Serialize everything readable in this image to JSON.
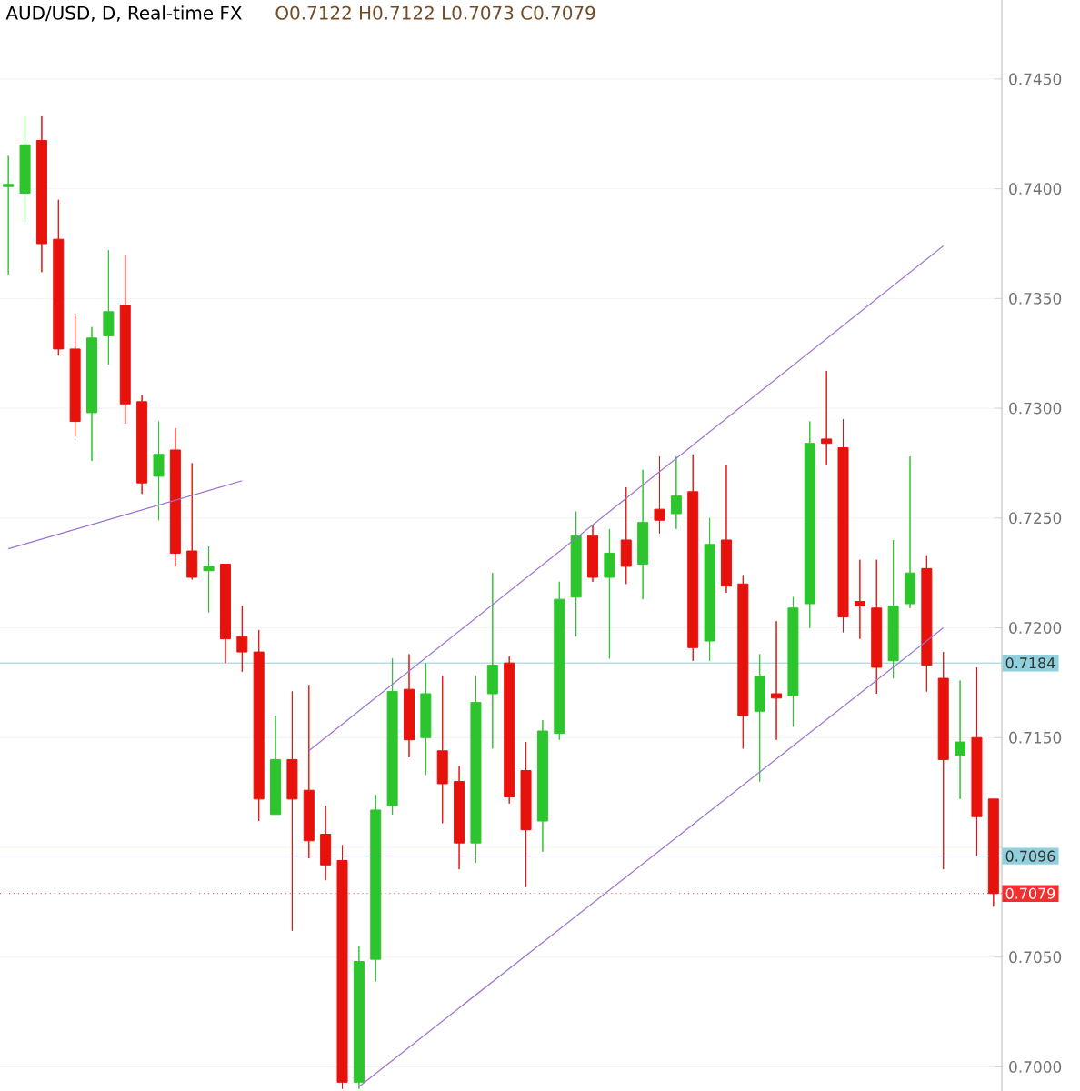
{
  "chart_data": {
    "type": "candlestick",
    "title": "AUD/USD, D, Real-time FX",
    "subtitle": "O0.7122  H0.7122  L0.7073  C0.7079",
    "categories": [
      null,
      null,
      null,
      null,
      null,
      null,
      null,
      null,
      null,
      null,
      null,
      null,
      null,
      null,
      null,
      null,
      null,
      null,
      null,
      null,
      null,
      null,
      null,
      null,
      null,
      null,
      null,
      null,
      null,
      null,
      null,
      null,
      null,
      null,
      null,
      null,
      null,
      null,
      null,
      null,
      null,
      null,
      null,
      null,
      null,
      null,
      null,
      null,
      null,
      null,
      null,
      null,
      null,
      null,
      null,
      null,
      null,
      null,
      null,
      null
    ],
    "ohlc": [
      [
        0.7401,
        0.7415,
        0.7361,
        0.7402
      ],
      [
        0.7398,
        0.7433,
        0.7385,
        0.742
      ],
      [
        0.7422,
        0.7433,
        0.7362,
        0.7375
      ],
      [
        0.7377,
        0.7395,
        0.7324,
        0.7327
      ],
      [
        0.7327,
        0.7343,
        0.7287,
        0.7294
      ],
      [
        0.7298,
        0.7337,
        0.7276,
        0.7332
      ],
      [
        0.7333,
        0.7372,
        0.732,
        0.7344
      ],
      [
        0.7347,
        0.737,
        0.7293,
        0.7302
      ],
      [
        0.7303,
        0.7306,
        0.7261,
        0.7266
      ],
      [
        0.7269,
        0.7294,
        0.7249,
        0.7279
      ],
      [
        0.7281,
        0.7291,
        0.7228,
        0.7234
      ],
      [
        0.7235,
        0.7275,
        0.7222,
        0.7223
      ],
      [
        0.7226,
        0.7237,
        0.7207,
        0.7228
      ],
      [
        0.7229,
        0.7229,
        0.7184,
        0.7195
      ],
      [
        0.7196,
        0.721,
        0.718,
        0.7189
      ],
      [
        0.7189,
        0.7199,
        0.7112,
        0.7122
      ],
      [
        0.7115,
        0.716,
        0.7115,
        0.714
      ],
      [
        0.714,
        0.7171,
        0.7062,
        0.7122
      ],
      [
        0.7126,
        0.7174,
        0.7095,
        0.7103
      ],
      [
        0.7106,
        0.7119,
        0.7085,
        0.7092
      ],
      [
        0.7094,
        0.7101,
        0.699,
        0.6993
      ],
      [
        0.6993,
        0.7055,
        0.699,
        0.7048
      ],
      [
        0.7049,
        0.7124,
        0.7039,
        0.7117
      ],
      [
        0.7119,
        0.7186,
        0.7115,
        0.7171
      ],
      [
        0.7172,
        0.7188,
        0.7141,
        0.7149
      ],
      [
        0.715,
        0.7184,
        0.7133,
        0.717
      ],
      [
        0.7144,
        0.7178,
        0.7111,
        0.7129
      ],
      [
        0.713,
        0.7137,
        0.709,
        0.7102
      ],
      [
        0.7102,
        0.7178,
        0.7093,
        0.7166
      ],
      [
        0.717,
        0.7225,
        0.7145,
        0.7183
      ],
      [
        0.7184,
        0.7187,
        0.712,
        0.7123
      ],
      [
        0.7135,
        0.7148,
        0.7082,
        0.7108
      ],
      [
        0.7112,
        0.7158,
        0.7098,
        0.7153
      ],
      [
        0.7152,
        0.7221,
        0.7149,
        0.7213
      ],
      [
        0.7214,
        0.7253,
        0.7196,
        0.7242
      ],
      [
        0.7242,
        0.7247,
        0.7221,
        0.7223
      ],
      [
        0.7223,
        0.7245,
        0.7186,
        0.7234
      ],
      [
        0.724,
        0.7264,
        0.722,
        0.7228
      ],
      [
        0.7229,
        0.7272,
        0.7213,
        0.7248
      ],
      [
        0.7254,
        0.7278,
        0.7243,
        0.7249
      ],
      [
        0.7252,
        0.7278,
        0.7245,
        0.726
      ],
      [
        0.7262,
        0.7279,
        0.7185,
        0.7191
      ],
      [
        0.7194,
        0.725,
        0.7185,
        0.7238
      ],
      [
        0.724,
        0.7274,
        0.7216,
        0.7219
      ],
      [
        0.722,
        0.7224,
        0.7145,
        0.716
      ],
      [
        0.7162,
        0.7188,
        0.713,
        0.7178
      ],
      [
        0.717,
        0.7203,
        0.7149,
        0.7168
      ],
      [
        0.7169,
        0.7214,
        0.7155,
        0.7209
      ],
      [
        0.7211,
        0.7294,
        0.72,
        0.7284
      ],
      [
        0.7286,
        0.7317,
        0.7274,
        0.7284
      ],
      [
        0.7282,
        0.7295,
        0.7198,
        0.7205
      ],
      [
        0.7212,
        0.7231,
        0.7195,
        0.721
      ],
      [
        0.7209,
        0.7231,
        0.717,
        0.7182
      ],
      [
        0.7185,
        0.724,
        0.7177,
        0.721
      ],
      [
        0.7211,
        0.7278,
        0.7209,
        0.7225
      ],
      [
        0.7227,
        0.7233,
        0.7171,
        0.7183
      ],
      [
        0.7177,
        0.7189,
        0.709,
        0.714
      ],
      [
        0.7142,
        0.7176,
        0.7122,
        0.7148
      ],
      [
        0.715,
        0.7182,
        0.7096,
        0.7114
      ],
      [
        0.7122,
        0.7122,
        0.7073,
        0.7079
      ]
    ],
    "colors": [
      "#2dc52d",
      "#2dc52d",
      "#e8120c",
      "#e8120c",
      "#e8120c",
      "#2dc52d",
      "#2dc52d",
      "#e8120c",
      "#e8120c",
      "#2dc52d",
      "#e8120c",
      "#e8120c",
      "#2dc52d",
      "#e8120c",
      "#e8120c",
      "#e8120c",
      "#2dc52d",
      "#e8120c",
      "#e8120c",
      "#e8120c",
      "#e8120c",
      "#2dc52d",
      "#2dc52d",
      "#2dc52d",
      "#e8120c",
      "#2dc52d",
      "#e8120c",
      "#e8120c",
      "#2dc52d",
      "#2dc52d",
      "#e8120c",
      "#e8120c",
      "#2dc52d",
      "#2dc52d",
      "#2dc52d",
      "#e8120c",
      "#2dc52d",
      "#e8120c",
      "#2dc52d",
      "#e8120c",
      "#2dc52d",
      "#e8120c",
      "#2dc52d",
      "#e8120c",
      "#e8120c",
      "#2dc52d",
      "#e8120c",
      "#2dc52d",
      "#2dc52d",
      "#e8120c",
      "#e8120c",
      "#e8120c",
      "#e8120c",
      "#2dc52d",
      "#2dc52d",
      "#e8120c",
      "#e8120c",
      "#2dc52d",
      "#e8120c",
      "#e8120c"
    ],
    "series": [
      {
        "type": "line",
        "color": "#9b72cf",
        "values": [
          0.7236,
          null,
          null,
          null,
          null,
          null,
          null,
          null,
          null,
          null,
          null,
          null,
          null,
          null,
          0.7267,
          null,
          null,
          null,
          null,
          null,
          null,
          null,
          null,
          null,
          null,
          null,
          null,
          null,
          null,
          null,
          null,
          null,
          null,
          null,
          null,
          null,
          null,
          null,
          null,
          null,
          null,
          null,
          null,
          null,
          null,
          null,
          null,
          null,
          null,
          null,
          null,
          null,
          null,
          null,
          null,
          null,
          null,
          null,
          null,
          null
        ]
      },
      {
        "type": "line",
        "color": "#9b72cf",
        "values": [
          null,
          null,
          null,
          null,
          null,
          null,
          null,
          null,
          null,
          null,
          null,
          null,
          null,
          null,
          null,
          null,
          null,
          null,
          0.7144,
          null,
          null,
          null,
          null,
          null,
          null,
          null,
          null,
          null,
          null,
          null,
          null,
          null,
          null,
          null,
          null,
          null,
          null,
          null,
          null,
          null,
          null,
          null,
          null,
          null,
          null,
          null,
          null,
          null,
          null,
          null,
          null,
          null,
          null,
          null,
          null,
          null,
          0.7374,
          null,
          null,
          null
        ]
      },
      {
        "type": "line",
        "color": "#9b72cf",
        "values": [
          null,
          null,
          null,
          null,
          null,
          null,
          null,
          null,
          null,
          null,
          null,
          null,
          null,
          null,
          null,
          null,
          null,
          null,
          null,
          null,
          null,
          0.6991,
          null,
          null,
          null,
          null,
          null,
          null,
          null,
          null,
          null,
          null,
          null,
          null,
          null,
          null,
          null,
          null,
          null,
          null,
          null,
          null,
          null,
          null,
          null,
          null,
          null,
          null,
          null,
          null,
          null,
          null,
          null,
          null,
          null,
          null,
          0.72,
          null,
          null,
          null
        ]
      }
    ],
    "ref_lines": [
      {
        "axis": "y",
        "value": 0.7184,
        "label": "0.7184",
        "color": "#8fd0dc"
      },
      {
        "axis": "y",
        "value": 0.7096,
        "label": "0.7096",
        "color": "#8fd0dc"
      },
      {
        "axis": "y",
        "value": 0.7079,
        "label": "0.7079",
        "color": "#f03030",
        "line_style": "dotted"
      }
    ],
    "ylim": [
      0.6989,
      0.7486
    ],
    "yticks": [
      {
        "value": 0.7,
        "label": "0.7000"
      },
      {
        "value": 0.705,
        "label": "0.7050"
      },
      {
        "value": 0.71,
        "label": null
      },
      {
        "value": 0.715,
        "label": "0.7150"
      },
      {
        "value": 0.72,
        "label": "0.7200"
      },
      {
        "value": 0.725,
        "label": "0.7250"
      },
      {
        "value": 0.73,
        "label": "0.7300"
      },
      {
        "value": 0.735,
        "label": "0.7350"
      },
      {
        "value": 0.74,
        "label": "0.7400"
      },
      {
        "value": 0.745,
        "label": "0.7450"
      }
    ],
    "grid": "y"
  }
}
